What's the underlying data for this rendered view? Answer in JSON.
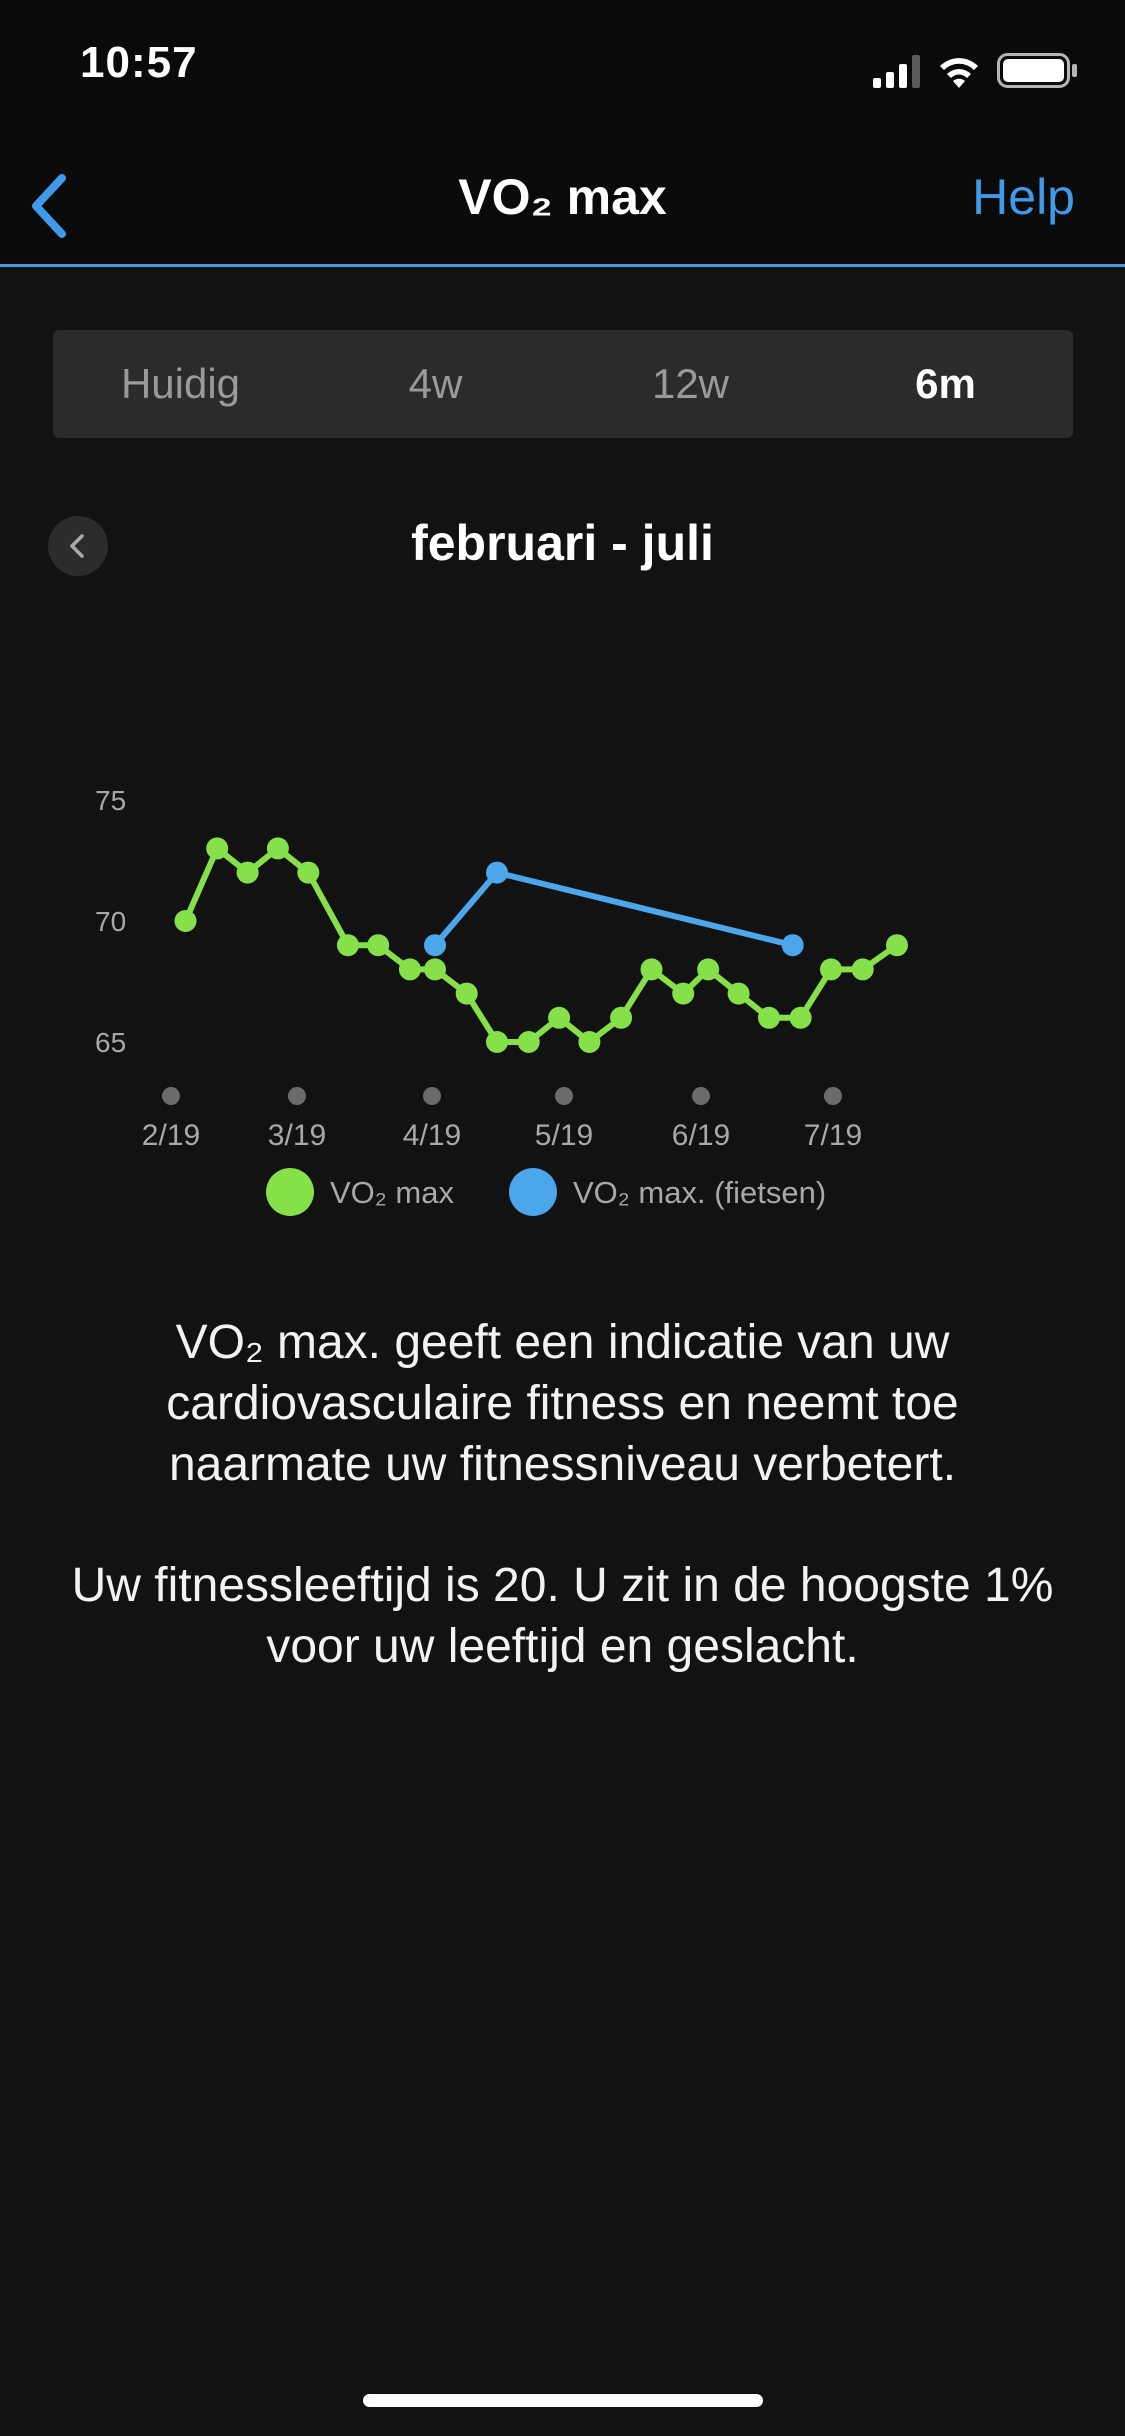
{
  "status_bar": {
    "time": "10:57",
    "icons": [
      "signal-icon",
      "wifi-icon",
      "battery-icon"
    ]
  },
  "header": {
    "back_icon": "chevron-left-icon",
    "title": "VO₂ max",
    "help_label": "Help",
    "accent_color": "#3d9be9"
  },
  "tabs": [
    {
      "label": "Huidig",
      "active": false
    },
    {
      "label": "4w",
      "active": false
    },
    {
      "label": "12w",
      "active": false
    },
    {
      "label": "6m",
      "active": true
    }
  ],
  "period": {
    "prev_icon": "chevron-left-icon",
    "title": "februari - juli"
  },
  "chart_data": {
    "type": "line",
    "x_tick_labels": [
      "2/19",
      "3/19",
      "4/19",
      "5/19",
      "6/19",
      "7/19"
    ],
    "y_ticks": [
      75,
      70,
      65
    ],
    "ylim": [
      65,
      75
    ],
    "grid": false,
    "legend_position": "bottom",
    "series": [
      {
        "name": "VO₂ max",
        "color": "#86e04a",
        "values": [
          70,
          73,
          72,
          73,
          72,
          69,
          69,
          68,
          68,
          67,
          65,
          65,
          66,
          65,
          66,
          68,
          67,
          68,
          67,
          66,
          66,
          68,
          68,
          69
        ],
        "x_pos": [
          0.11,
          0.35,
          0.58,
          0.81,
          1.04,
          1.34,
          1.57,
          1.81,
          2.0,
          2.24,
          2.47,
          2.71,
          2.94,
          3.17,
          3.41,
          3.64,
          3.88,
          4.07,
          4.3,
          4.53,
          4.77,
          5.0,
          5.24,
          5.5
        ]
      },
      {
        "name": "VO₂ max. (fietsen)",
        "color": "#4ba6ec",
        "values": [
          69,
          72,
          69
        ],
        "x_pos": [
          2.0,
          2.47,
          4.71
        ]
      }
    ]
  },
  "description": {
    "paragraph_1": "VO₂ max. geeft een indicatie van uw cardiovasculaire fitness en neemt toe naarmate uw fitnessniveau verbetert.",
    "paragraph_2": "Uw fitnessleeftijd is 20. U zit in de hoogste 1% voor uw leeftijd en geslacht."
  }
}
